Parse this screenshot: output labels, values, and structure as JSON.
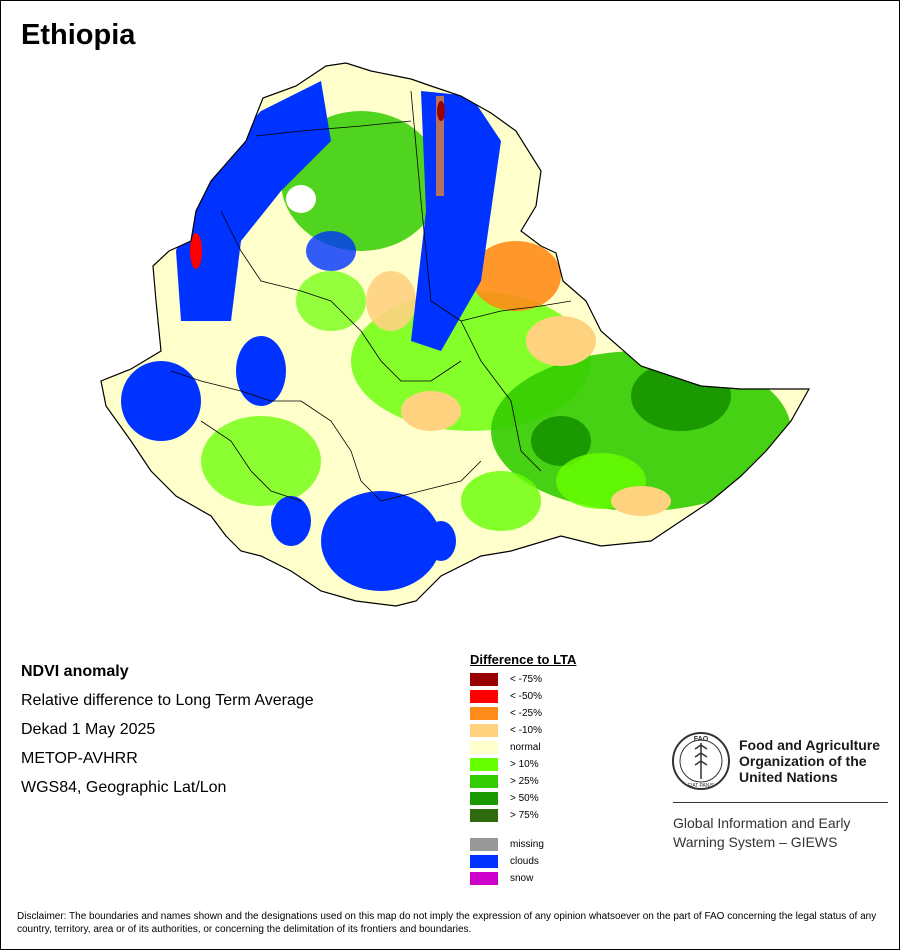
{
  "map": {
    "title": "Ethiopia"
  },
  "info": {
    "heading": "NDVI anomaly",
    "lines": [
      "Relative difference to Long Term Average",
      "Dekad 1 May 2025",
      "METOP-AVHRR",
      "WGS84, Geographic Lat/Lon"
    ]
  },
  "legend": {
    "title": "Difference to LTA",
    "items": [
      {
        "label": "< -75%",
        "color": "#990000"
      },
      {
        "label": "< -50%",
        "color": "#ff0000"
      },
      {
        "label": "< -25%",
        "color": "#ff8c1a"
      },
      {
        "label": "< -10%",
        "color": "#ffd280"
      },
      {
        "label": "normal",
        "color": "#ffffcc"
      },
      {
        "label": "> 10%",
        "color": "#66ff00"
      },
      {
        "label": "> 25%",
        "color": "#33cc00"
      },
      {
        "label": "> 50%",
        "color": "#1a9900"
      },
      {
        "label": "> 75%",
        "color": "#2e6b0f"
      }
    ],
    "extra": [
      {
        "label": "missing",
        "color": "#999999"
      },
      {
        "label": "clouds",
        "color": "#0033ff"
      },
      {
        "label": "snow",
        "color": "#cc00cc"
      }
    ]
  },
  "logo": {
    "org_line1": "Food and Agriculture",
    "org_line2": "Organization of the",
    "org_line3": "United Nations",
    "emblem_text": "FAO",
    "emblem_motto": "FIAT PANIS",
    "giews_line1": "Global Information and Early",
    "giews_line2": "Warning System – GIEWS"
  },
  "disclaimer": "Disclaimer: The boundaries and names shown and the designations used on this map do not imply the expression of any opinion whatsoever on the part of FAO concerning the legal status of any country, territory, area or of its authorities, or concerning the delimitation of its frontiers and boundaries."
}
